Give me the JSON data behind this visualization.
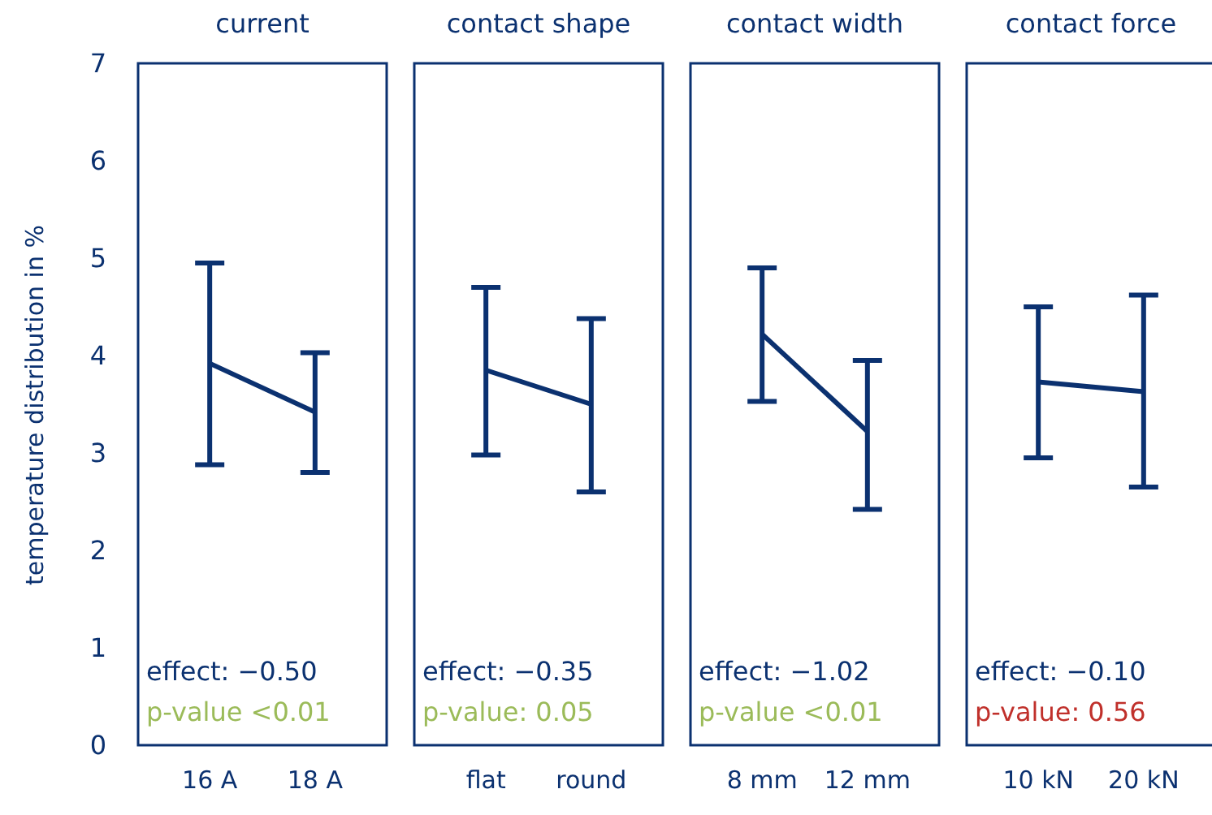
{
  "chart_data": [
    {
      "type": "line",
      "title": "current",
      "ylabel": "temperature distribution in %",
      "categories": [
        "16 A",
        "18 A"
      ],
      "series": [
        {
          "color": "#0b3170",
          "values": [
            3.92,
            3.42
          ],
          "errors": [
            [
              2.88,
              4.95
            ],
            [
              2.8,
              4.03
            ]
          ]
        }
      ],
      "ylim": [
        0,
        7
      ],
      "yticks": [
        0,
        1,
        2,
        3,
        4,
        5,
        6,
        7
      ],
      "grid": false,
      "annotations": [
        "effect: −0.50",
        "p-value <0.01"
      ]
    },
    {
      "type": "line",
      "title": "contact shape",
      "categories": [
        "flat",
        "round"
      ],
      "series": [
        {
          "color": "#0b3170",
          "values": [
            3.85,
            3.5
          ],
          "errors": [
            [
              2.98,
              4.7
            ],
            [
              2.6,
              4.38
            ]
          ]
        }
      ],
      "ylim": [
        0,
        7
      ],
      "yticks": [
        0,
        1,
        2,
        3,
        4,
        5,
        6,
        7
      ],
      "tick_labels": "x",
      "grid": false,
      "annotations": [
        "effect: −0.35",
        "p-value: 0.05"
      ]
    },
    {
      "type": "line",
      "title": "contact width",
      "categories": [
        "8 mm",
        "12 mm"
      ],
      "series": [
        {
          "color": "#0b3170",
          "values": [
            4.22,
            3.22
          ],
          "errors": [
            [
              3.53,
              4.9
            ],
            [
              2.42,
              3.95
            ]
          ]
        }
      ],
      "ylim": [
        0,
        7
      ],
      "yticks": [
        0,
        1,
        2,
        3,
        4,
        5,
        6,
        7
      ],
      "tick_labels": "x",
      "grid": false,
      "annotations": [
        "effect: −1.02",
        "p-value <0.01"
      ]
    },
    {
      "type": "line",
      "title": "contact force",
      "categories": [
        "10 kN",
        "20 kN"
      ],
      "series": [
        {
          "color": "#0b3170",
          "values": [
            3.73,
            3.63
          ],
          "errors": [
            [
              2.95,
              4.5
            ],
            [
              2.65,
              4.62
            ]
          ]
        }
      ],
      "ylim": [
        0,
        7
      ],
      "yticks": [
        0,
        1,
        2,
        3,
        4,
        5,
        6,
        7
      ],
      "tick_labels": "x",
      "grid": false,
      "annotations": [
        "effect: −0.10",
        "p-value: 0.56"
      ]
    }
  ]
}
